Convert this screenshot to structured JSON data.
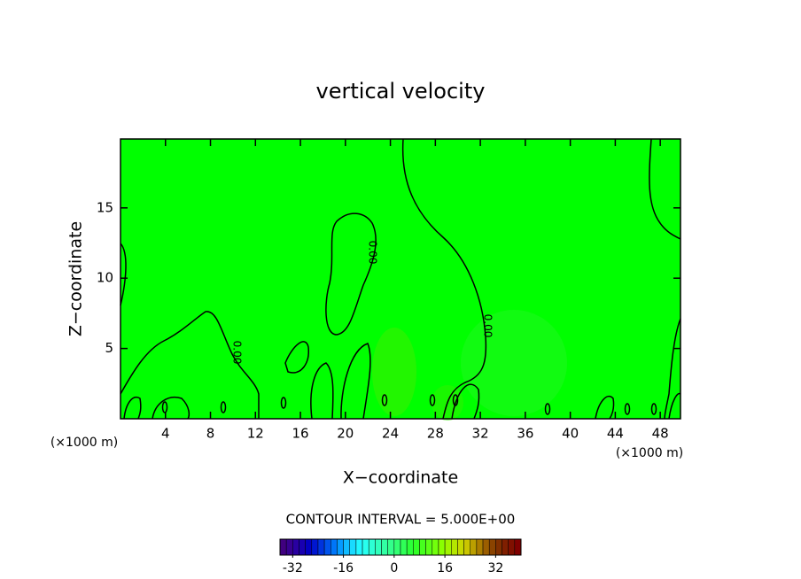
{
  "chart_data": {
    "type": "contour",
    "title": "vertical velocity",
    "x_label": "X−coordinate",
    "y_label": "Z−coordinate",
    "x_unit": "(×1000 m)",
    "xlim": [
      0,
      49.8
    ],
    "xticks": [
      4,
      8,
      12,
      16,
      20,
      24,
      28,
      32,
      36,
      40,
      44,
      48
    ],
    "ylim": [
      0,
      19.9
    ],
    "yticks": [
      5,
      10,
      15
    ],
    "field_color": "#00ff00",
    "line_color": "#000000",
    "contour_level": {
      "value": 0,
      "label": "0.00"
    },
    "contour_interval_label": "CONTOUR INTERVAL = 5.000E+00",
    "colorbar": {
      "lim": [
        -36,
        40
      ],
      "ticks": [
        -32,
        -16,
        0,
        16,
        32
      ]
    }
  }
}
